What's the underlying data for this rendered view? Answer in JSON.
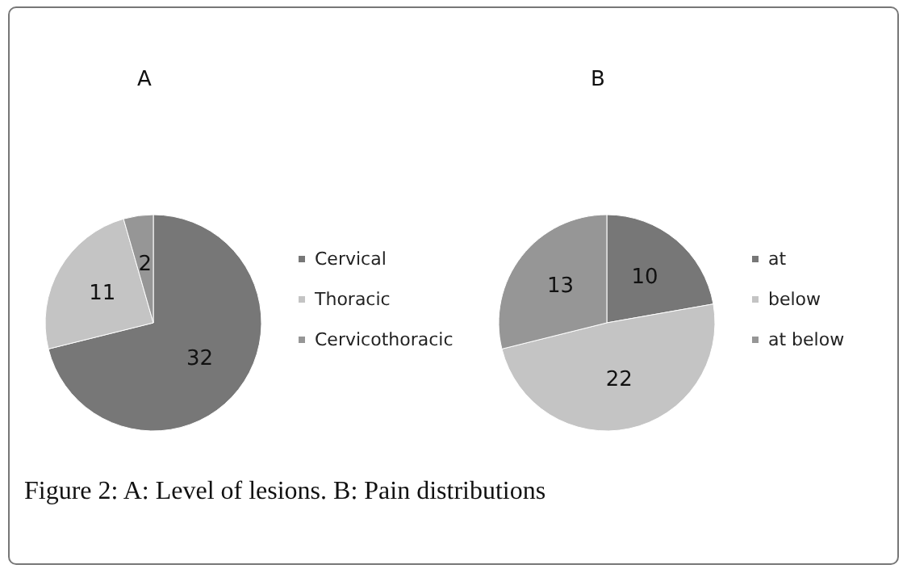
{
  "chart_data": [
    {
      "type": "pie",
      "title": "A",
      "categories": [
        "Cervical",
        "Thoracic",
        "Cervicothoracic"
      ],
      "values": [
        32,
        11,
        2
      ],
      "colors": [
        "#777777",
        "#c4c4c4",
        "#969696"
      ],
      "data_labels": true,
      "legend": "right",
      "annotations": [
        "Figure 2: A: Level of lesions. B: Pain distributions"
      ]
    },
    {
      "type": "pie",
      "title": "B",
      "categories": [
        "at",
        "below",
        "at below"
      ],
      "values": [
        10,
        22,
        13
      ],
      "colors": [
        "#777777",
        "#c4c4c4",
        "#969696"
      ],
      "data_labels": true,
      "legend": "right"
    }
  ]
}
